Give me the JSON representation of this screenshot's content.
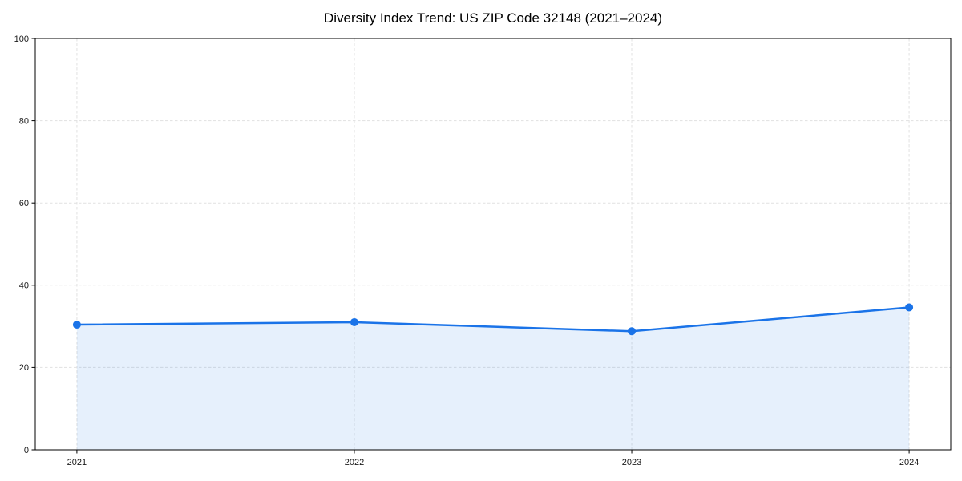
{
  "page": {
    "background": "#ffffff"
  },
  "chart_data": {
    "type": "line",
    "title": "Diversity Index Trend: US ZIP Code 32148 (2021–2024)",
    "x": [
      2021,
      2022,
      2023,
      2024
    ],
    "x_labels": [
      "2021",
      "2022",
      "2023",
      "2024"
    ],
    "series": [
      {
        "name": "Diversity Index",
        "values": [
          30.4,
          31.0,
          28.8,
          34.6
        ]
      }
    ],
    "xlabel": "",
    "ylabel": "",
    "ylim": [
      0,
      100
    ],
    "yticks": [
      0,
      20,
      40,
      60,
      80,
      100
    ],
    "ytick_labels": [
      "0",
      "20",
      "40",
      "60",
      "80",
      "100"
    ],
    "x_margin_fraction": 0.05,
    "grid": {
      "show": true,
      "style": "dashed",
      "color": "#e1e1e1"
    },
    "legend": "none",
    "area_fill": true,
    "marker": "circle",
    "colors": {
      "line": "#1a73e8",
      "marker": "#1a73e8",
      "fill": "rgba(26,115,232,0.11)",
      "axis": "#000000",
      "tick_label": "#1a1a1a",
      "title": "#000000"
    }
  }
}
